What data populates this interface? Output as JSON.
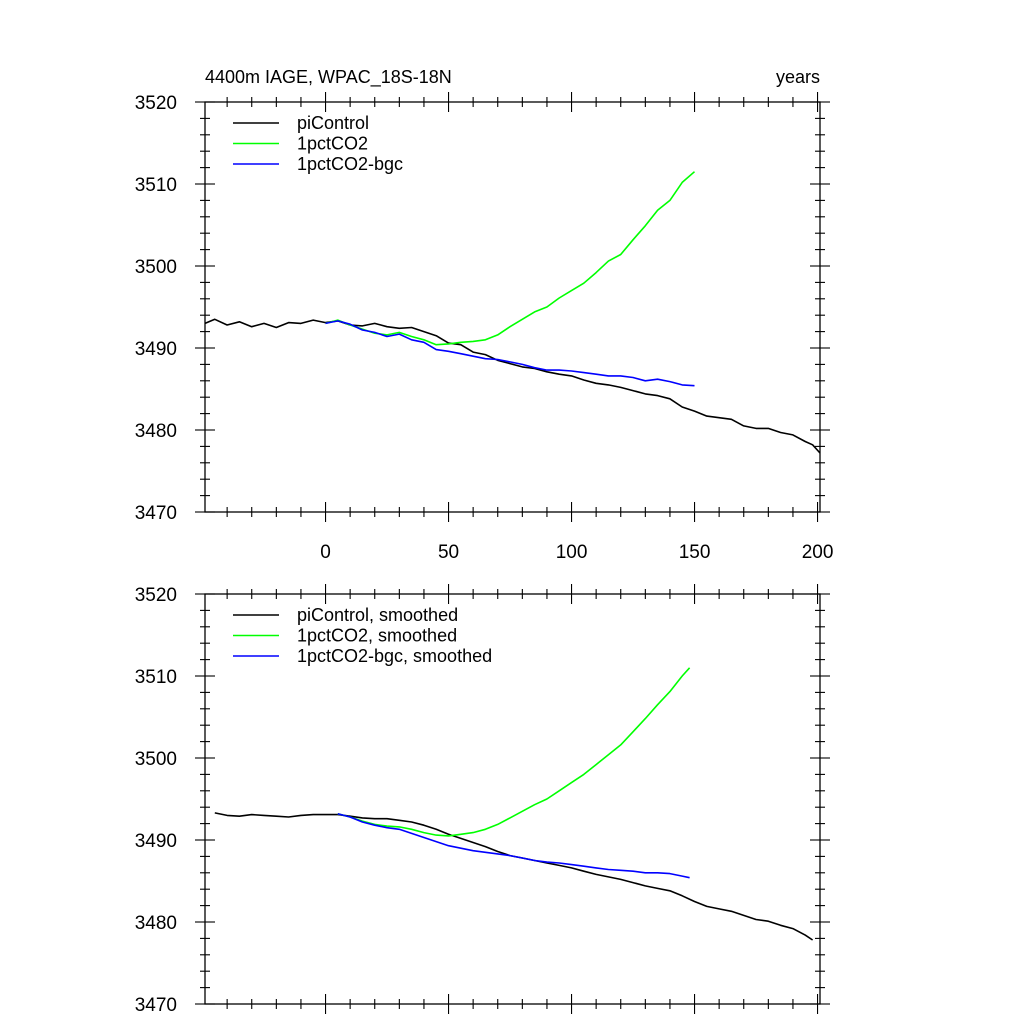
{
  "chart_data": [
    {
      "type": "line",
      "title": "4400m IAGE, WPAC_18S-18N",
      "title_right": "years",
      "xlim": [
        -49,
        201
      ],
      "ylim": [
        3470,
        3520
      ],
      "xticks": [
        0,
        50,
        100,
        150,
        200
      ],
      "yticks": [
        3470,
        3480,
        3490,
        3500,
        3510,
        3520
      ],
      "show_xtick_labels": true,
      "legend_position": "top-left",
      "series": [
        {
          "name": "piControl",
          "color": "#000000",
          "x": [
            -49,
            -45,
            -40,
            -35,
            -30,
            -25,
            -20,
            -15,
            -10,
            -5,
            0,
            5,
            10,
            15,
            20,
            25,
            30,
            35,
            40,
            45,
            50,
            55,
            60,
            65,
            70,
            75,
            80,
            85,
            90,
            95,
            100,
            105,
            110,
            115,
            120,
            125,
            130,
            135,
            140,
            145,
            150,
            155,
            160,
            165,
            170,
            175,
            180,
            185,
            190,
            195,
            198,
            201
          ],
          "values": [
            3493.0,
            3493.5,
            3492.8,
            3493.2,
            3492.6,
            3493.0,
            3492.5,
            3493.1,
            3493.0,
            3493.4,
            3493.1,
            3493.3,
            3492.8,
            3492.7,
            3493.0,
            3492.6,
            3492.4,
            3492.5,
            3492.0,
            3491.5,
            3490.6,
            3490.4,
            3489.5,
            3489.2,
            3488.5,
            3488.1,
            3487.7,
            3487.5,
            3487.1,
            3486.8,
            3486.6,
            3486.1,
            3485.7,
            3485.5,
            3485.2,
            3484.8,
            3484.4,
            3484.2,
            3483.8,
            3482.8,
            3482.3,
            3481.7,
            3481.5,
            3481.3,
            3480.5,
            3480.2,
            3480.2,
            3479.7,
            3479.4,
            3478.6,
            3478.2,
            3477.2
          ]
        },
        {
          "name": "1pctCO2",
          "color": "#00ff00",
          "x": [
            0,
            5,
            10,
            15,
            20,
            25,
            30,
            35,
            40,
            45,
            50,
            55,
            60,
            65,
            70,
            75,
            80,
            85,
            90,
            95,
            100,
            105,
            110,
            115,
            120,
            125,
            130,
            135,
            140,
            145,
            150
          ],
          "values": [
            3493.0,
            3493.4,
            3492.8,
            3492.3,
            3491.8,
            3491.6,
            3491.9,
            3491.4,
            3491.0,
            3490.4,
            3490.5,
            3490.7,
            3490.8,
            3491.0,
            3491.6,
            3492.6,
            3493.5,
            3494.4,
            3495.0,
            3496.1,
            3497.0,
            3497.9,
            3499.2,
            3500.6,
            3501.4,
            3503.2,
            3504.9,
            3506.8,
            3508.0,
            3510.2,
            3511.5
          ]
        },
        {
          "name": "1pctCO2-bgc",
          "color": "#0000ff",
          "x": [
            0,
            5,
            10,
            15,
            20,
            25,
            30,
            35,
            40,
            45,
            50,
            55,
            60,
            65,
            70,
            75,
            80,
            85,
            90,
            95,
            100,
            105,
            110,
            115,
            120,
            125,
            130,
            135,
            140,
            145,
            150
          ],
          "values": [
            3493.0,
            3493.3,
            3492.9,
            3492.2,
            3491.9,
            3491.4,
            3491.7,
            3491.0,
            3490.7,
            3489.8,
            3489.6,
            3489.3,
            3489.0,
            3488.7,
            3488.6,
            3488.3,
            3488.0,
            3487.6,
            3487.3,
            3487.3,
            3487.2,
            3487.0,
            3486.8,
            3486.6,
            3486.6,
            3486.4,
            3486.0,
            3486.2,
            3485.9,
            3485.5,
            3485.4
          ]
        }
      ]
    },
    {
      "type": "line",
      "xlim": [
        -49,
        201
      ],
      "ylim": [
        3470,
        3520
      ],
      "xticks": [
        0,
        50,
        100,
        150,
        200
      ],
      "yticks": [
        3470,
        3480,
        3490,
        3500,
        3510,
        3520
      ],
      "show_xtick_labels": false,
      "legend_position": "top-left",
      "series": [
        {
          "name": "piControl, smoothed",
          "color": "#000000",
          "x": [
            -45,
            -40,
            -35,
            -30,
            -25,
            -20,
            -15,
            -10,
            -5,
            0,
            5,
            10,
            15,
            20,
            25,
            30,
            35,
            40,
            45,
            50,
            55,
            60,
            65,
            70,
            75,
            80,
            85,
            90,
            95,
            100,
            105,
            110,
            115,
            120,
            125,
            130,
            135,
            140,
            145,
            150,
            155,
            160,
            165,
            170,
            175,
            180,
            185,
            190,
            195,
            198
          ],
          "values": [
            3493.3,
            3493.0,
            3492.9,
            3493.1,
            3493.0,
            3492.9,
            3492.8,
            3493.0,
            3493.1,
            3493.1,
            3493.1,
            3492.9,
            3492.7,
            3492.6,
            3492.6,
            3492.4,
            3492.2,
            3491.8,
            3491.3,
            3490.7,
            3490.2,
            3489.7,
            3489.2,
            3488.6,
            3488.1,
            3487.8,
            3487.5,
            3487.2,
            3486.9,
            3486.6,
            3486.2,
            3485.8,
            3485.5,
            3485.2,
            3484.8,
            3484.4,
            3484.1,
            3483.8,
            3483.2,
            3482.5,
            3481.9,
            3481.6,
            3481.3,
            3480.8,
            3480.3,
            3480.1,
            3479.6,
            3479.2,
            3478.4,
            3477.8
          ]
        },
        {
          "name": "1pctCO2, smoothed",
          "color": "#00ff00",
          "x": [
            5,
            10,
            15,
            20,
            25,
            30,
            35,
            40,
            45,
            50,
            55,
            60,
            65,
            70,
            75,
            80,
            85,
            90,
            95,
            100,
            105,
            110,
            115,
            120,
            125,
            130,
            135,
            140,
            145,
            148
          ],
          "values": [
            3493.2,
            3492.8,
            3492.3,
            3491.9,
            3491.7,
            3491.6,
            3491.3,
            3490.9,
            3490.6,
            3490.5,
            3490.7,
            3490.9,
            3491.3,
            3491.9,
            3492.7,
            3493.5,
            3494.3,
            3495.0,
            3496.0,
            3497.0,
            3498.0,
            3499.2,
            3500.4,
            3501.6,
            3503.2,
            3504.8,
            3506.5,
            3508.1,
            3510.0,
            3511.0
          ]
        },
        {
          "name": "1pctCO2-bgc, smoothed",
          "color": "#0000ff",
          "x": [
            5,
            10,
            15,
            20,
            25,
            30,
            35,
            40,
            45,
            50,
            55,
            60,
            65,
            70,
            75,
            80,
            85,
            90,
            95,
            100,
            105,
            110,
            115,
            120,
            125,
            130,
            135,
            140,
            145,
            148
          ],
          "values": [
            3493.2,
            3492.8,
            3492.2,
            3491.8,
            3491.5,
            3491.3,
            3490.8,
            3490.3,
            3489.8,
            3489.3,
            3489.0,
            3488.7,
            3488.5,
            3488.3,
            3488.1,
            3487.8,
            3487.5,
            3487.3,
            3487.2,
            3487.0,
            3486.8,
            3486.6,
            3486.4,
            3486.3,
            3486.2,
            3486.0,
            3486.0,
            3485.9,
            3485.6,
            3485.4
          ]
        }
      ]
    }
  ]
}
